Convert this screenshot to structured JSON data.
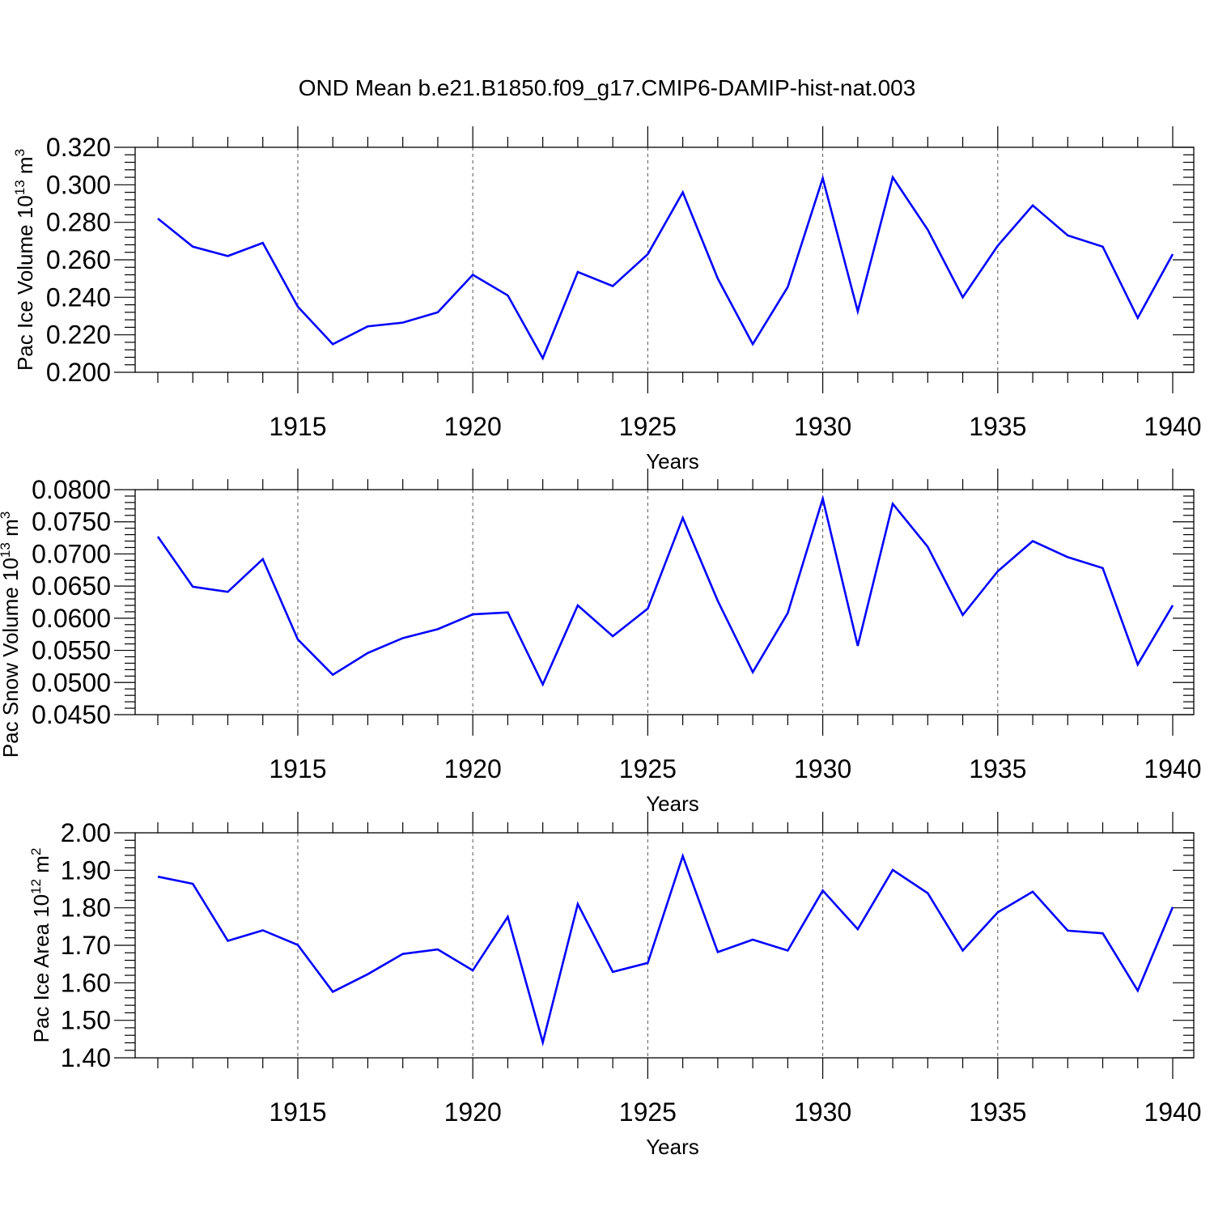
{
  "title": "OND Mean b.e21.B1850.f09_g17.CMIP6-DAMIP-hist-nat.003",
  "line_color": "#0000ff",
  "chart_data": [
    {
      "type": "line",
      "title": "OND Mean b.e21.B1850.f09_g17.CMIP6-DAMIP-hist-nat.003",
      "xlabel": "Years",
      "ylabel_main": "Pac Ice Volume 10",
      "ylabel_exp": "13",
      "ylabel_unit": " m",
      "ylabel_unit_exp": "3",
      "xlim": [
        1911,
        1940
      ],
      "ylim": [
        0.2,
        0.32
      ],
      "y_ticks": [
        0.2,
        0.22,
        0.24,
        0.26,
        0.28,
        0.3,
        0.32
      ],
      "y_tick_labels": [
        "0.200",
        "0.220",
        "0.240",
        "0.260",
        "0.280",
        "0.300",
        "0.320"
      ],
      "x_ticks": [
        1915,
        1920,
        1925,
        1930,
        1935,
        1940
      ],
      "x_tick_labels": [
        "1915",
        "1920",
        "1925",
        "1930",
        "1935",
        "1940"
      ],
      "grid": "vertical dashed at major x ticks",
      "x": [
        1911,
        1912,
        1913,
        1914,
        1915,
        1916,
        1917,
        1918,
        1919,
        1920,
        1921,
        1922,
        1923,
        1924,
        1925,
        1926,
        1927,
        1928,
        1929,
        1930,
        1931,
        1932,
        1933,
        1934,
        1935,
        1936,
        1937,
        1938,
        1939,
        1940
      ],
      "series": [
        {
          "name": "Pac Ice Volume",
          "values": [
            0.282,
            0.267,
            0.262,
            0.269,
            0.235,
            0.215,
            0.2245,
            0.2265,
            0.232,
            0.252,
            0.241,
            0.2075,
            0.2535,
            0.246,
            0.263,
            0.296,
            0.25,
            0.215,
            0.2455,
            0.3035,
            0.2325,
            0.304,
            0.276,
            0.24,
            0.2675,
            0.289,
            0.273,
            0.267,
            0.229,
            0.263
          ]
        }
      ]
    },
    {
      "type": "line",
      "xlabel": "Years",
      "ylabel_main": "Pac Snow Volume 10",
      "ylabel_exp": "13",
      "ylabel_unit": " m",
      "ylabel_unit_exp": "3",
      "xlim": [
        1911,
        1940
      ],
      "ylim": [
        0.045,
        0.08
      ],
      "y_ticks": [
        0.045,
        0.05,
        0.055,
        0.06,
        0.065,
        0.07,
        0.075,
        0.08
      ],
      "y_tick_labels": [
        "0.0450",
        "0.0500",
        "0.0550",
        "0.0600",
        "0.0650",
        "0.0700",
        "0.0750",
        "0.0800"
      ],
      "x_ticks": [
        1915,
        1920,
        1925,
        1930,
        1935,
        1940
      ],
      "x_tick_labels": [
        "1915",
        "1920",
        "1925",
        "1930",
        "1935",
        "1940"
      ],
      "grid": "vertical dashed at major x ticks",
      "x": [
        1911,
        1912,
        1913,
        1914,
        1915,
        1916,
        1917,
        1918,
        1919,
        1920,
        1921,
        1922,
        1923,
        1924,
        1925,
        1926,
        1927,
        1928,
        1929,
        1930,
        1931,
        1932,
        1933,
        1934,
        1935,
        1936,
        1937,
        1938,
        1939,
        1940
      ],
      "series": [
        {
          "name": "Pac Snow Volume",
          "values": [
            0.0727,
            0.0649,
            0.0641,
            0.0692,
            0.0567,
            0.0512,
            0.0546,
            0.0569,
            0.0583,
            0.0606,
            0.0609,
            0.0497,
            0.062,
            0.0572,
            0.0615,
            0.0756,
            0.0627,
            0.0516,
            0.0608,
            0.0786,
            0.0557,
            0.0778,
            0.0711,
            0.0605,
            0.0673,
            0.072,
            0.0695,
            0.0678,
            0.0528,
            0.062
          ]
        }
      ]
    },
    {
      "type": "line",
      "xlabel": "Years",
      "ylabel_main": "Pac Ice Area 10",
      "ylabel_exp": "12",
      "ylabel_unit": " m",
      "ylabel_unit_exp": "2",
      "xlim": [
        1911,
        1940
      ],
      "ylim": [
        1.4,
        2.0
      ],
      "y_ticks": [
        1.4,
        1.5,
        1.6,
        1.7,
        1.8,
        1.9,
        2.0
      ],
      "y_tick_labels": [
        "1.40",
        "1.50",
        "1.60",
        "1.70",
        "1.80",
        "1.90",
        "2.00"
      ],
      "x_ticks": [
        1915,
        1920,
        1925,
        1930,
        1935,
        1940
      ],
      "x_tick_labels": [
        "1915",
        "1920",
        "1925",
        "1930",
        "1935",
        "1940"
      ],
      "grid": "vertical dashed at major x ticks",
      "x": [
        1911,
        1912,
        1913,
        1914,
        1915,
        1916,
        1917,
        1918,
        1919,
        1920,
        1921,
        1922,
        1923,
        1924,
        1925,
        1926,
        1927,
        1928,
        1929,
        1930,
        1931,
        1932,
        1933,
        1934,
        1935,
        1936,
        1937,
        1938,
        1939,
        1940
      ],
      "series": [
        {
          "name": "Pac Ice Area",
          "values": [
            1.883,
            1.864,
            1.712,
            1.74,
            1.701,
            1.576,
            1.623,
            1.677,
            1.689,
            1.633,
            1.776,
            1.441,
            1.81,
            1.629,
            1.653,
            1.938,
            1.682,
            1.715,
            1.686,
            1.846,
            1.743,
            1.901,
            1.839,
            1.686,
            1.788,
            1.843,
            1.739,
            1.732,
            1.579,
            1.802
          ]
        }
      ]
    }
  ]
}
